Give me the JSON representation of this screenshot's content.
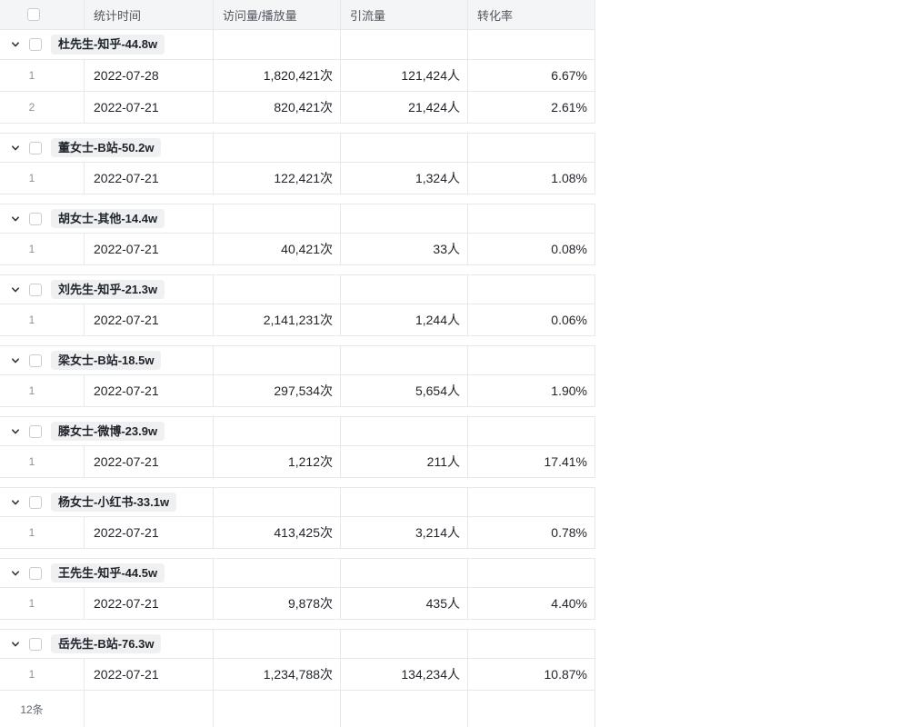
{
  "table": {
    "columns": [
      {
        "id": "stat_time",
        "label": "统计时间"
      },
      {
        "id": "visits",
        "label": "访问量/播放量"
      },
      {
        "id": "leads",
        "label": "引流量"
      },
      {
        "id": "rate",
        "label": "转化率"
      }
    ],
    "groups": [
      {
        "label": "杜先生-知乎-44.8w",
        "rows": [
          {
            "index": "1",
            "date": "2022-07-28",
            "visits": "1,820,421次",
            "leads": "121,424人",
            "rate": "6.67%"
          },
          {
            "index": "2",
            "date": "2022-07-21",
            "visits": "820,421次",
            "leads": "21,424人",
            "rate": "2.61%"
          }
        ]
      },
      {
        "label": "董女士-B站-50.2w",
        "rows": [
          {
            "index": "1",
            "date": "2022-07-21",
            "visits": "122,421次",
            "leads": "1,324人",
            "rate": "1.08%"
          }
        ]
      },
      {
        "label": "胡女士-其他-14.4w",
        "rows": [
          {
            "index": "1",
            "date": "2022-07-21",
            "visits": "40,421次",
            "leads": "33人",
            "rate": "0.08%"
          }
        ]
      },
      {
        "label": "刘先生-知乎-21.3w",
        "rows": [
          {
            "index": "1",
            "date": "2022-07-21",
            "visits": "2,141,231次",
            "leads": "1,244人",
            "rate": "0.06%"
          }
        ]
      },
      {
        "label": "梁女士-B站-18.5w",
        "rows": [
          {
            "index": "1",
            "date": "2022-07-21",
            "visits": "297,534次",
            "leads": "5,654人",
            "rate": "1.90%"
          }
        ]
      },
      {
        "label": "滕女士-微博-23.9w",
        "rows": [
          {
            "index": "1",
            "date": "2022-07-21",
            "visits": "1,212次",
            "leads": "211人",
            "rate": "17.41%"
          }
        ]
      },
      {
        "label": "杨女士-小红书-33.1w",
        "rows": [
          {
            "index": "1",
            "date": "2022-07-21",
            "visits": "413,425次",
            "leads": "3,214人",
            "rate": "0.78%"
          }
        ]
      },
      {
        "label": "王先生-知乎-44.5w",
        "rows": [
          {
            "index": "1",
            "date": "2022-07-21",
            "visits": "9,878次",
            "leads": "435人",
            "rate": "4.40%"
          }
        ]
      },
      {
        "label": "岳先生-B站-76.3w",
        "rows": [
          {
            "index": "1",
            "date": "2022-07-21",
            "visits": "1,234,788次",
            "leads": "134,234人",
            "rate": "10.87%"
          }
        ]
      }
    ],
    "footer": {
      "count": "12条"
    }
  },
  "icons": {
    "group_toggle": "chevron-down",
    "row_select": "checkbox-unchecked"
  },
  "colors": {
    "header_bg": "#f4f5f6",
    "border": "#e7e8ea",
    "text": "#1f2329",
    "muted_text": "#8a9199",
    "group_pill_bg": "#eef0f1"
  }
}
